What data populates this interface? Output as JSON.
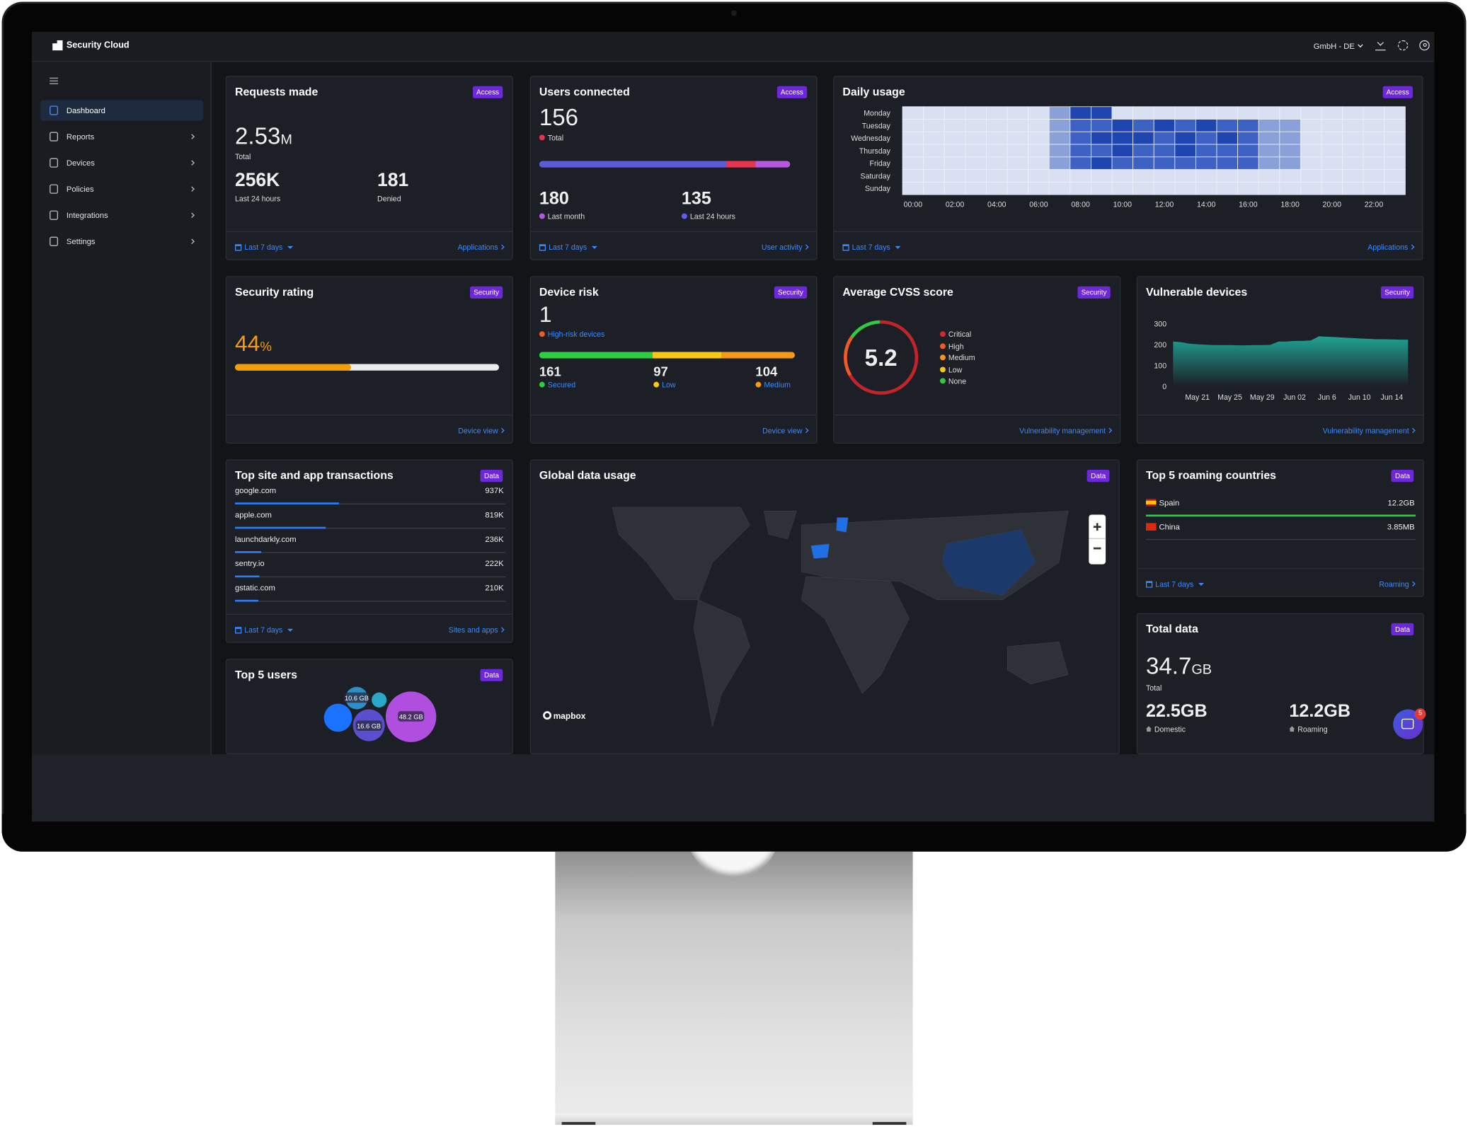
{
  "header": {
    "app_name": "Security Cloud",
    "org_selector": "GmbH - DE"
  },
  "sidebar": {
    "items": [
      "Dashboard",
      "Reports",
      "Devices",
      "Policies",
      "Integrations",
      "Settings"
    ],
    "active": 0
  },
  "cards": {
    "requests_made": {
      "title": "Requests made",
      "tag": "Access",
      "total": {
        "value": "2.53",
        "unit": "M",
        "label": "Total"
      },
      "stats": [
        {
          "value": "256K",
          "label": "Last 24 hours"
        },
        {
          "value": "181",
          "label": "Denied"
        }
      ],
      "period": "Last 7 days",
      "link": "Applications"
    },
    "users_connected": {
      "title": "Users connected",
      "tag": "Access",
      "total": {
        "value": "156",
        "label": "Total",
        "color": "#e8344e"
      },
      "stats": [
        {
          "value": "180",
          "label": "Last month",
          "color": "#b659e0"
        },
        {
          "value": "135",
          "label": "Last 24 hours",
          "color": "#5d5ff0"
        }
      ],
      "period": "Last 7 days",
      "link": "User activity"
    },
    "daily_usage": {
      "title": "Daily usage",
      "tag": "Access",
      "chart": {
        "type": "heatmap",
        "rows": [
          "Monday",
          "Tuesday",
          "Wednesday",
          "Thursday",
          "Friday",
          "Saturday",
          "Sunday"
        ],
        "columns": [
          "00:00",
          null,
          "02:00",
          null,
          "04:00",
          null,
          "06:00",
          null,
          "08:00",
          null,
          "10:00",
          null,
          "12:00",
          null,
          "14:00",
          null,
          "16:00",
          null,
          "18:00",
          null,
          "20:00",
          null,
          "22:00",
          null
        ],
        "values": [
          [
            0,
            0,
            0,
            0,
            0,
            0,
            0,
            1,
            3,
            3,
            0,
            0,
            0,
            0,
            0,
            0,
            0,
            0,
            0,
            0,
            0,
            0,
            0,
            0
          ],
          [
            0,
            0,
            0,
            0,
            0,
            0,
            0,
            1,
            2,
            2,
            3,
            2,
            3,
            2,
            3,
            2,
            2,
            1,
            1,
            0,
            0,
            0,
            0,
            0
          ],
          [
            0,
            0,
            0,
            0,
            0,
            0,
            0,
            1,
            2,
            3,
            3,
            3,
            2,
            3,
            2,
            3,
            2,
            1,
            1,
            0,
            0,
            0,
            0,
            0
          ],
          [
            0,
            0,
            0,
            0,
            0,
            0,
            0,
            1,
            2,
            2,
            3,
            2,
            2,
            3,
            2,
            2,
            2,
            1,
            1,
            0,
            0,
            0,
            0,
            0
          ],
          [
            0,
            0,
            0,
            0,
            0,
            0,
            0,
            1,
            2,
            3,
            2,
            2,
            2,
            2,
            2,
            2,
            2,
            1,
            1,
            0,
            0,
            0,
            0,
            0
          ],
          [
            0,
            0,
            0,
            0,
            0,
            0,
            0,
            0,
            0,
            0,
            0,
            0,
            0,
            0,
            0,
            0,
            0,
            0,
            0,
            0,
            0,
            0,
            0,
            0
          ],
          [
            0,
            0,
            0,
            0,
            0,
            0,
            0,
            0,
            0,
            0,
            0,
            0,
            0,
            0,
            0,
            0,
            0,
            0,
            0,
            0,
            0,
            0,
            0,
            0
          ]
        ],
        "colors": [
          "#d9e0f2",
          "#8aa0d9",
          "#3e62c4",
          "#1e45b0"
        ]
      },
      "period": "Last 7 days",
      "link": "Applications"
    },
    "security_rating": {
      "title": "Security rating",
      "tag": "Security",
      "score": {
        "value": 44,
        "unit": "%"
      },
      "color": "#f59e0b",
      "link": "Device view"
    },
    "device_risk": {
      "title": "Device risk",
      "tag": "Security",
      "count": {
        "value": "1",
        "label": "High-risk devices",
        "color": "#f05a28"
      },
      "breakdown": [
        {
          "value": 161,
          "label": "Secured",
          "color": "#2ecc40"
        },
        {
          "value": 97,
          "label": "Low",
          "color": "#f7c815"
        },
        {
          "value": 104,
          "label": "Medium",
          "color": "#f59a16"
        }
      ],
      "link": "Device view"
    },
    "cvss": {
      "title": "Average CVSS score",
      "tag": "Security",
      "score": "5.2",
      "legend": [
        {
          "label": "Critical",
          "color": "#d42a2a"
        },
        {
          "label": "High",
          "color": "#f05a28"
        },
        {
          "label": "Medium",
          "color": "#f5941e"
        },
        {
          "label": "Low",
          "color": "#f7c815"
        },
        {
          "label": "None",
          "color": "#2ecc40"
        }
      ],
      "link": "Vulnerability management"
    },
    "vulnerable_devices": {
      "title": "Vulnerable devices",
      "tag": "Security",
      "chart": {
        "type": "area",
        "categories": [
          null,
          null,
          null,
          "May 21",
          null,
          null,
          null,
          "May 25",
          null,
          null,
          null,
          "May 29",
          null,
          null,
          null,
          "Jun 02",
          null,
          null,
          null,
          "Jun 6",
          null,
          null,
          null,
          "Jun 10",
          null,
          null,
          null,
          "Jun 14",
          null,
          null
        ],
        "values": [
          215,
          212,
          205,
          202,
          200,
          198,
          198,
          198,
          197,
          197,
          198,
          198,
          199,
          215,
          215,
          218,
          218,
          220,
          240,
          238,
          236,
          234,
          232,
          230,
          228,
          226,
          226,
          225,
          224,
          224
        ],
        "ylim": [
          0,
          300
        ],
        "yticks": [
          0,
          100,
          200,
          300
        ],
        "color": "#1fa393"
      },
      "link": "Vulnerability management"
    },
    "top_sites": {
      "title": "Top site and app transactions",
      "tag": "Data",
      "rows": [
        {
          "name": "google.com",
          "value": 937000,
          "value_label": "937K"
        },
        {
          "name": "apple.com",
          "value": 819000,
          "value_label": "819K"
        },
        {
          "name": "launchdarkly.com",
          "value": 236000,
          "value_label": "236K"
        },
        {
          "name": "sentry.io",
          "value": 222000,
          "value_label": "222K"
        },
        {
          "name": "gstatic.com",
          "value": 210000,
          "value_label": "210K"
        }
      ],
      "period": "Last 7 days",
      "link": "Sites and apps"
    },
    "top_users": {
      "title": "Top 5 users",
      "tag": "Data",
      "bubble_labels": [
        "10.6 GB",
        "16.6 GB",
        "48.2 GB"
      ]
    },
    "global_usage": {
      "title": "Global data usage",
      "tag": "Data",
      "attribution": "mapbox"
    },
    "roaming": {
      "title": "Top 5 roaming countries",
      "tag": "Data",
      "rows": [
        {
          "country": "Spain",
          "usage": "12.2GB"
        },
        {
          "country": "China",
          "usage": "3.85MB"
        }
      ],
      "period": "Last 7 days",
      "link": "Roaming"
    },
    "total_data": {
      "title": "Total data",
      "tag": "Data",
      "total": {
        "value": "34.7",
        "unit": "GB",
        "label": "Total"
      },
      "stats": [
        {
          "value": "22.5GB",
          "label": "Domestic"
        },
        {
          "value": "12.2GB",
          "label": "Roaming"
        }
      ]
    }
  },
  "notifications": {
    "count": "5"
  }
}
